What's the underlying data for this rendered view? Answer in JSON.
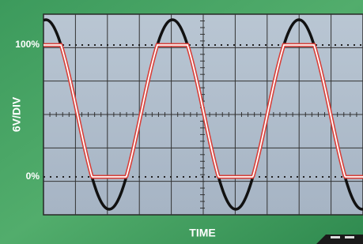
{
  "labels": {
    "y_top": "100%",
    "y_bottom": "0%",
    "y_axis": "6V/DIV",
    "x_axis": "TIME"
  }
}
